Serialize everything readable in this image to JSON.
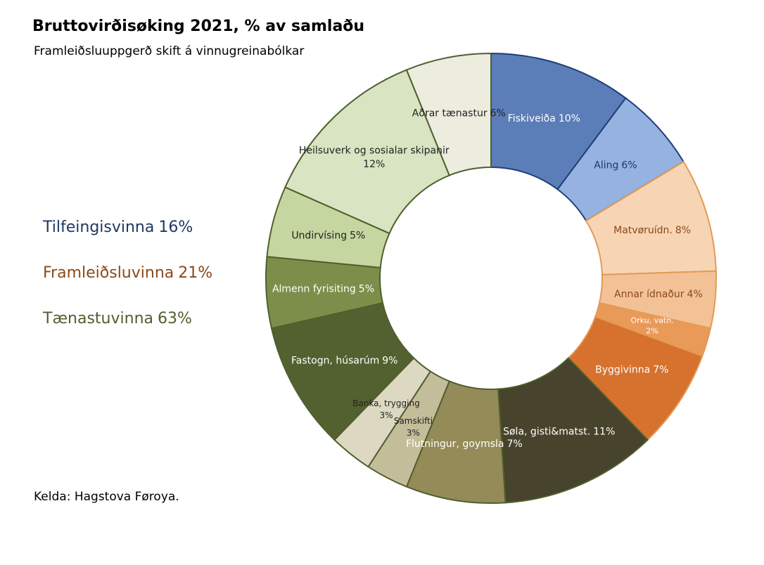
{
  "chart_data": {
    "type": "pie",
    "title": "Bruttovirðisøking 2021, % av samlaðu",
    "subtitle": "Framleiðsluuppgerð skift á vinnugreinabólkar",
    "source": "Kelda: Hagstova Føroya.",
    "categories": [
      "Fiskiveiða",
      "Aling",
      "Matvøruídn.",
      "Annar ídnaður",
      "Orku, vatn.",
      "Byggivinna",
      "Søla, gisti&matst.",
      "Flutningur, goymsla",
      "Samskifti",
      "Banka, trygging",
      "Fastogn, húsarúm",
      "Almenn fyrisiting",
      "Undirvísing",
      "Heilsuverk og sosialar skipanir",
      "Aðrar tænastur"
    ],
    "values": [
      10,
      6,
      8,
      4,
      2,
      7,
      11,
      7,
      3,
      3,
      9,
      5,
      5,
      12,
      6
    ],
    "value_labels": [
      "10%",
      "6%",
      "8%",
      "4%",
      "2%",
      "7%",
      "11%",
      "7%",
      "3%",
      "3%",
      "9%",
      "5%",
      "5%",
      "12%",
      "6%"
    ],
    "colors": [
      "#5b7db8",
      "#95b2e0",
      "#f7d4b4",
      "#f3c196",
      "#e99a58",
      "#d6712e",
      "#48432c",
      "#948b58",
      "#c4bd9a",
      "#ddd8c2",
      "#536130",
      "#7d8e4a",
      "#c5d6a0",
      "#d9e4c2",
      "#eceddf"
    ],
    "edge_colors": [
      "#1f3f74",
      "#1f3f74",
      "#e39a55",
      "#e39a55",
      "#e39a55",
      "#e39a55",
      "#4f5f2e",
      "#4f5f2e",
      "#4f5f2e",
      "#4f5f2e",
      "#4f5f2e",
      "#4f5f2e",
      "#4f5f2e",
      "#4f5f2e",
      "#4f5f2e"
    ],
    "label_colors": [
      "#ffffff",
      "#1f3864",
      "#8a4a1a",
      "#8a4a1a",
      "#ffffff",
      "#ffffff",
      "#ffffff",
      "#ffffff",
      "#222222",
      "#222222",
      "#ffffff",
      "#ffffff",
      "#222222",
      "#222222",
      "#222222"
    ],
    "groups": [
      {
        "name": "Tilfeingisvinna",
        "value": 16,
        "value_label": "16%",
        "color": "#1f3864"
      },
      {
        "name": "Framleiðsluvinna",
        "value": 21,
        "value_label": "21%",
        "color": "#8a4a1a"
      },
      {
        "name": "Tænastuvinna",
        "value": 63,
        "value_label": "63%",
        "color": "#4f5f2e"
      }
    ]
  }
}
